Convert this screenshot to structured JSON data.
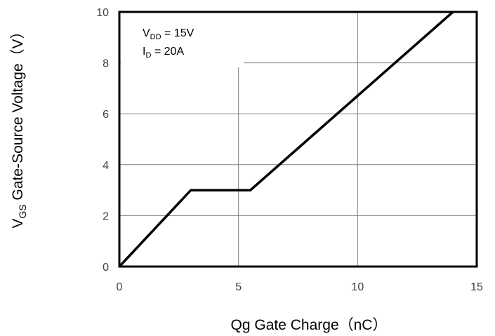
{
  "chart_data": {
    "type": "line",
    "xlabel": "Qg Gate Charge（nC）",
    "ylabel": {
      "prefix": "V",
      "subscript": "GS",
      "rest": " Gate-Source Voltage（V）"
    },
    "xlim": [
      0,
      15
    ],
    "ylim": [
      0,
      10
    ],
    "x_ticks": [
      0,
      5,
      10,
      15
    ],
    "y_ticks": [
      0,
      2,
      4,
      6,
      8,
      10
    ],
    "x_tick_labels": [
      "0",
      "5",
      "10",
      "15"
    ],
    "y_tick_labels": [
      "0",
      "2",
      "4",
      "6",
      "8",
      "10"
    ],
    "grid": true,
    "series": [
      {
        "points": [
          [
            0,
            0
          ],
          [
            3,
            3
          ],
          [
            5.5,
            3
          ],
          [
            14,
            10
          ]
        ]
      }
    ],
    "annotations": [
      {
        "main": "V",
        "sub": "DD",
        "rest": " = 15V"
      },
      {
        "main": "I",
        "sub": "D",
        "rest": " = 20A"
      }
    ],
    "colors": {
      "line": "#000000",
      "grid": "#808080",
      "frame": "#000000",
      "tick_text": "#404040"
    }
  }
}
